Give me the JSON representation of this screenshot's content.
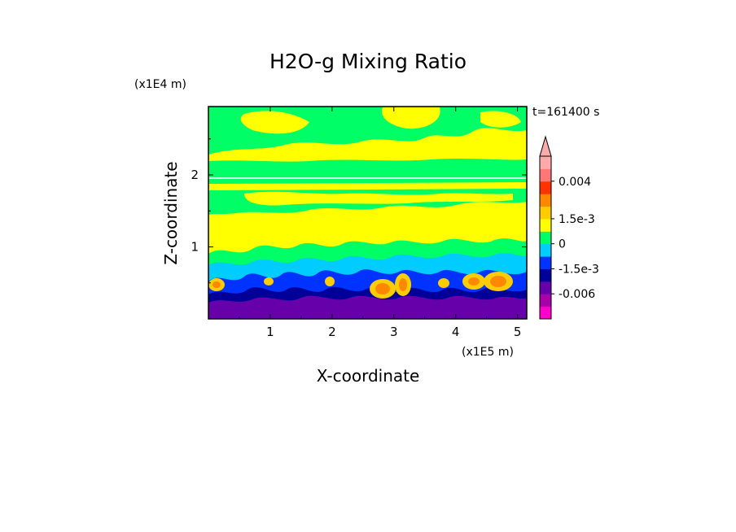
{
  "chart_data": {
    "type": "heatmap",
    "title": "H2O-g Mixing Ratio",
    "xlabel": "X-coordinate",
    "ylabel": "Z-coordinate",
    "x_unit": "(x1E5 m)",
    "y_unit": "(x1E4 m)",
    "time_label": "t=161400  s",
    "x_ticks": [
      "1",
      "2",
      "3",
      "4",
      "5"
    ],
    "y_ticks": [
      "1",
      "2"
    ],
    "xlim": [
      0,
      5.15
    ],
    "ylim": [
      0,
      2.95
    ],
    "colorbar": {
      "levels": [
        "0.004",
        "1.5e-3",
        "0",
        "-1.5e-3",
        "-0.006"
      ],
      "colors": [
        "#ff00cc",
        "#aa00aa",
        "#6600aa",
        "#000099",
        "#0033ff",
        "#00ccff",
        "#00ff66",
        "#ffff00",
        "#ffcc00",
        "#ff8800",
        "#ff3300",
        "#ff7777",
        "#ffaaaa"
      ],
      "extend": "max"
    },
    "layers": [
      {
        "name": "lower-purple",
        "color": "#6600aa",
        "z_top": 0.25
      },
      {
        "name": "blue-band",
        "color": "#0033ff",
        "z_top": 0.45
      },
      {
        "name": "cyan-band",
        "color": "#00ccff",
        "z_top": 0.75
      },
      {
        "name": "mid-yellow",
        "color": "#ffff00",
        "z_top": 1.6
      },
      {
        "name": "mid-green",
        "color": "#00ff66",
        "z_top": 2.3
      },
      {
        "name": "upper-yellow",
        "color": "#ffff00",
        "z_top": 2.95
      }
    ],
    "orange_cells": [
      {
        "x": 2.8,
        "z": 0.4
      },
      {
        "x": 3.1,
        "z": 0.45
      },
      {
        "x": 4.3,
        "z": 0.45
      },
      {
        "x": 0.3,
        "z": 0.45
      }
    ]
  }
}
